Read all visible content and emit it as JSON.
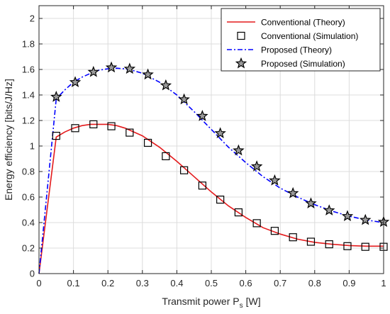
{
  "chart_data": {
    "type": "line",
    "xlabel": "Transmit power P",
    "xlabel_subscript": "s",
    "xlabel_unit": "[W]",
    "ylabel": "Energy efficiency [bits/J/Hz]",
    "xlim": [
      0,
      1
    ],
    "ylim": [
      0,
      2.1
    ],
    "xticks": [
      0,
      0.1,
      0.2,
      0.3,
      0.4,
      0.5,
      0.6,
      0.7,
      0.8,
      0.9,
      1
    ],
    "xtick_labels": [
      "0",
      "0.1",
      "0.2",
      "0.3",
      "0.4",
      "0.5",
      "0.6",
      "0.7",
      "0.8",
      "0.9",
      "1"
    ],
    "yticks": [
      0,
      0.2,
      0.4,
      0.6,
      0.8,
      1,
      1.2,
      1.4,
      1.6,
      1.8,
      2
    ],
    "ytick_labels": [
      "0",
      "0.2",
      "0.4",
      "0.6",
      "0.8",
      "1",
      "1.2",
      "1.4",
      "1.6",
      "1.8",
      "2"
    ],
    "grid": true,
    "legend_position": "top-right",
    "series": [
      {
        "name": "Conventional (Theory)",
        "style": "solid-line",
        "color": "#e41a1c",
        "x": [
          0,
          0.05,
          0.075,
          0.1,
          0.125,
          0.15,
          0.175,
          0.2,
          0.225,
          0.25,
          0.3,
          0.35,
          0.4,
          0.45,
          0.5,
          0.55,
          0.6,
          0.65,
          0.7,
          0.75,
          0.8,
          0.85,
          0.9,
          0.95,
          1
        ],
        "y": [
          0,
          1.07,
          1.11,
          1.14,
          1.16,
          1.17,
          1.17,
          1.17,
          1.16,
          1.14,
          1.08,
          0.99,
          0.88,
          0.76,
          0.64,
          0.53,
          0.44,
          0.36,
          0.31,
          0.27,
          0.245,
          0.23,
          0.22,
          0.215,
          0.215
        ]
      },
      {
        "name": "Conventional (Simulation)",
        "style": "square-marker",
        "color": "#000000",
        "x": [
          0.05,
          0.105,
          0.158,
          0.21,
          0.263,
          0.316,
          0.368,
          0.421,
          0.474,
          0.526,
          0.579,
          0.632,
          0.684,
          0.737,
          0.789,
          0.842,
          0.895,
          0.947,
          1.0
        ],
        "y": [
          1.08,
          1.14,
          1.17,
          1.155,
          1.105,
          1.025,
          0.92,
          0.81,
          0.69,
          0.58,
          0.48,
          0.395,
          0.335,
          0.285,
          0.25,
          0.23,
          0.215,
          0.21,
          0.21
        ]
      },
      {
        "name": "Proposed (Theory)",
        "style": "dash-dot-line",
        "color": "#0000ff",
        "x": [
          0,
          0.05,
          0.075,
          0.1,
          0.125,
          0.15,
          0.175,
          0.2,
          0.225,
          0.25,
          0.275,
          0.3,
          0.35,
          0.4,
          0.45,
          0.5,
          0.55,
          0.6,
          0.65,
          0.7,
          0.75,
          0.8,
          0.85,
          0.9,
          0.95,
          1
        ],
        "y": [
          0,
          1.37,
          1.44,
          1.5,
          1.54,
          1.57,
          1.595,
          1.605,
          1.61,
          1.605,
          1.59,
          1.57,
          1.5,
          1.4,
          1.27,
          1.13,
          0.99,
          0.87,
          0.76,
          0.67,
          0.6,
          0.54,
          0.49,
          0.45,
          0.42,
          0.4
        ]
      },
      {
        "name": "Proposed (Simulation)",
        "style": "star-marker",
        "color": "#000000",
        "x": [
          0.05,
          0.105,
          0.158,
          0.21,
          0.263,
          0.316,
          0.368,
          0.421,
          0.474,
          0.526,
          0.579,
          0.632,
          0.684,
          0.737,
          0.789,
          0.842,
          0.895,
          0.947,
          1.0
        ],
        "y": [
          1.385,
          1.5,
          1.58,
          1.615,
          1.605,
          1.56,
          1.475,
          1.365,
          1.235,
          1.1,
          0.965,
          0.84,
          0.73,
          0.63,
          0.55,
          0.495,
          0.45,
          0.42,
          0.405
        ]
      }
    ]
  }
}
